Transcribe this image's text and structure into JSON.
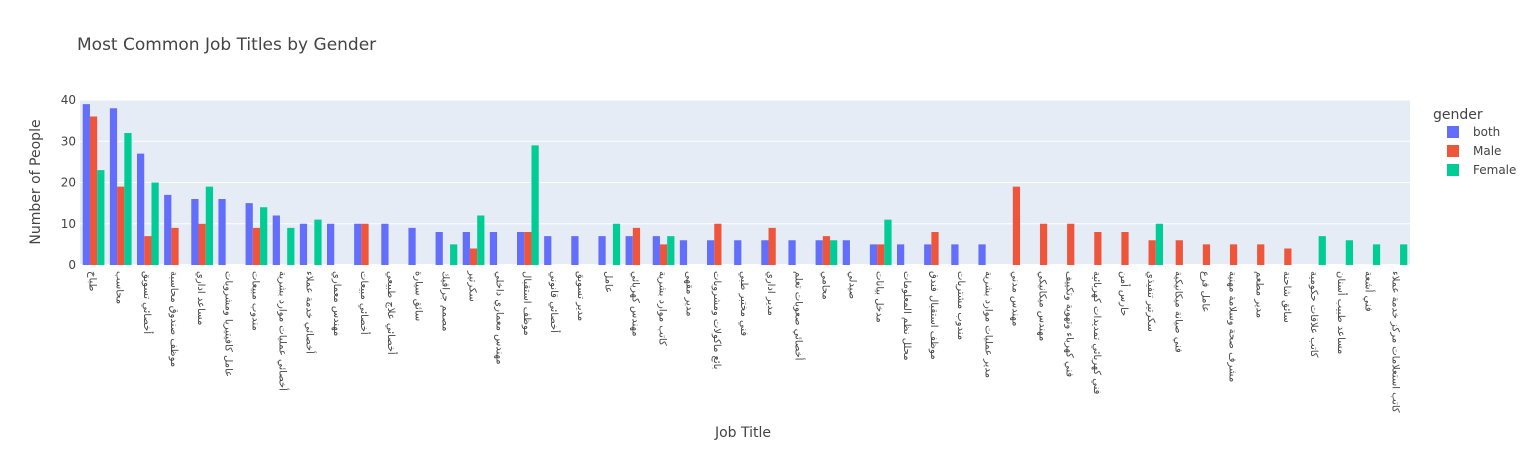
{
  "chart_data": {
    "type": "bar",
    "title": "Most Common Job Titles by Gender",
    "xlabel": "Job Title",
    "ylabel": "Number of People",
    "ylim": [
      0,
      40
    ],
    "yticks": [
      0,
      10,
      20,
      30,
      40
    ],
    "grid": true,
    "legend_title": "gender",
    "legend_position": "top-right",
    "categories": [
      "طباخ",
      "محاسب",
      "أخصائي تسويق",
      "موظف صندوق محاسبة",
      "مساعد اداري",
      "عامل كافيتيريا ومشروبات",
      "مندوب مبيعات",
      "أخصائي عمليات موارد بشرية",
      "أخصائي خدمة عملاء",
      "مهندس معماري",
      "أخصائي مبيعات",
      "أخصائي علاج طبيعي",
      "سائق سيارة",
      "مصمم جرافيك",
      "سكرتير",
      "مهندس معماري داخلي",
      "موظف استقبال",
      "أخصائي قانوني",
      "مدير تسويق",
      "عامل",
      "مهندس كهربائي",
      "كاتب موارد بشرية",
      "مدير مقهى",
      "بائع ماكولات ومشروبات",
      "فني مختبر طبي",
      "مدير اداري",
      "أخصائي صعوبات تعلم",
      "محامي",
      "صيدلي",
      "مدخل بيانات",
      "محلل نظم المعلومات",
      "موظف استقبال فندق",
      "مندوب مشتريات",
      "مدير عمليات موارد بشرية",
      "مهندس مدني",
      "مهندس ميكانيكي",
      "فني كهرباء وتهوية وتكييف",
      "فني كهربائي تمديدات كهربائية",
      "حارس أمن",
      "سكرتير تنفيذي",
      "فني صيانة ميكانيكية",
      "عامل فرع",
      "مشرف صحة وسلامة مهنية",
      "مدير مطعم",
      "سائق شاحنة",
      "كاتب علاقات حكومية",
      "مساعد طبيب أسنان",
      "فني أشعة",
      "كاتب استعلامات مركز خدمة عملاء"
    ],
    "series": [
      {
        "name": "both",
        "color": "#636efa",
        "values": [
          39,
          38,
          27,
          17,
          16,
          16,
          15,
          12,
          10,
          10,
          10,
          10,
          9,
          8,
          8,
          8,
          8,
          7,
          7,
          7,
          7,
          7,
          6,
          6,
          6,
          6,
          6,
          6,
          6,
          5,
          5,
          5,
          5,
          5,
          0,
          0,
          0,
          0,
          0,
          0,
          0,
          0,
          0,
          0,
          0,
          0,
          0,
          0,
          0
        ]
      },
      {
        "name": "Male",
        "color": "#ef553b",
        "values": [
          36,
          19,
          7,
          9,
          10,
          0,
          9,
          0,
          0,
          0,
          10,
          0,
          0,
          0,
          4,
          0,
          8,
          0,
          0,
          0,
          9,
          5,
          0,
          10,
          0,
          9,
          0,
          7,
          0,
          5,
          0,
          8,
          0,
          0,
          19,
          10,
          10,
          8,
          8,
          6,
          6,
          5,
          5,
          5,
          4,
          0,
          0,
          0,
          0
        ]
      },
      {
        "name": "Female",
        "color": "#00cc96",
        "values": [
          23,
          32,
          20,
          0,
          19,
          0,
          14,
          9,
          11,
          0,
          0,
          0,
          0,
          5,
          12,
          0,
          29,
          0,
          0,
          10,
          0,
          7,
          0,
          0,
          0,
          0,
          0,
          6,
          0,
          11,
          0,
          0,
          0,
          0,
          0,
          0,
          0,
          0,
          0,
          10,
          0,
          0,
          0,
          0,
          0,
          7,
          6,
          5,
          5
        ]
      }
    ]
  }
}
